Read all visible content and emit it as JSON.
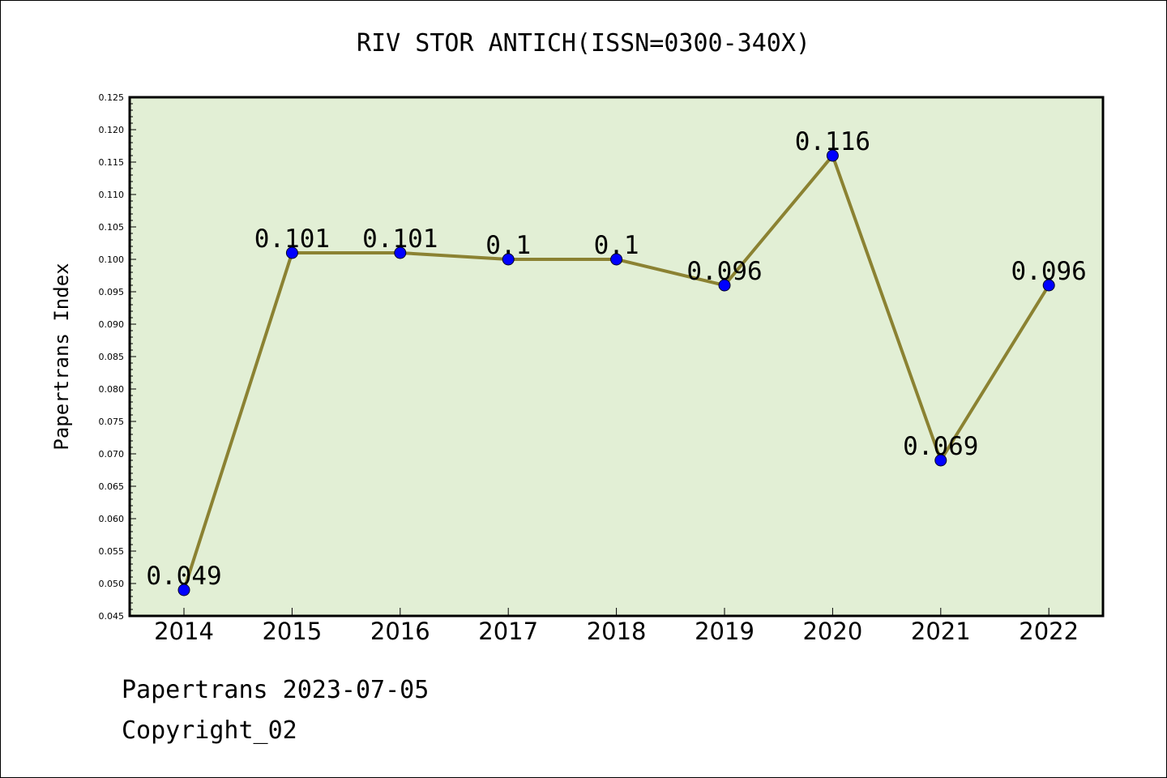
{
  "title": "RIV STOR ANTICH(ISSN=0300-340X)",
  "footer": {
    "line1": "Papertrans 2023-07-05",
    "line2": "Copyright_02"
  },
  "colors": {
    "plot_background": "#e2efd5",
    "line": "#8b8232",
    "marker": "#0000ff",
    "frame": "#000000"
  },
  "chart_data": {
    "type": "line",
    "title": "RIV STOR ANTICH(ISSN=0300-340X)",
    "xlabel": "",
    "ylabel": "Papertrans Index",
    "categories": [
      "2014",
      "2015",
      "2016",
      "2017",
      "2018",
      "2019",
      "2020",
      "2021",
      "2022"
    ],
    "values": [
      0.049,
      0.101,
      0.101,
      0.1,
      0.1,
      0.096,
      0.116,
      0.069,
      0.096
    ],
    "value_labels": [
      "0.049",
      "0.101",
      "0.101",
      "0.1",
      "0.1",
      "0.096",
      "0.116",
      "0.069",
      "0.096"
    ],
    "ylim": [
      0.045,
      0.125
    ],
    "yticks": [
      "0.045",
      "0.050",
      "0.055",
      "0.060",
      "0.065",
      "0.070",
      "0.075",
      "0.080",
      "0.085",
      "0.090",
      "0.095",
      "0.100",
      "0.105",
      "0.110",
      "0.115",
      "0.120",
      "0.125"
    ],
    "grid": false,
    "legend": "none"
  }
}
